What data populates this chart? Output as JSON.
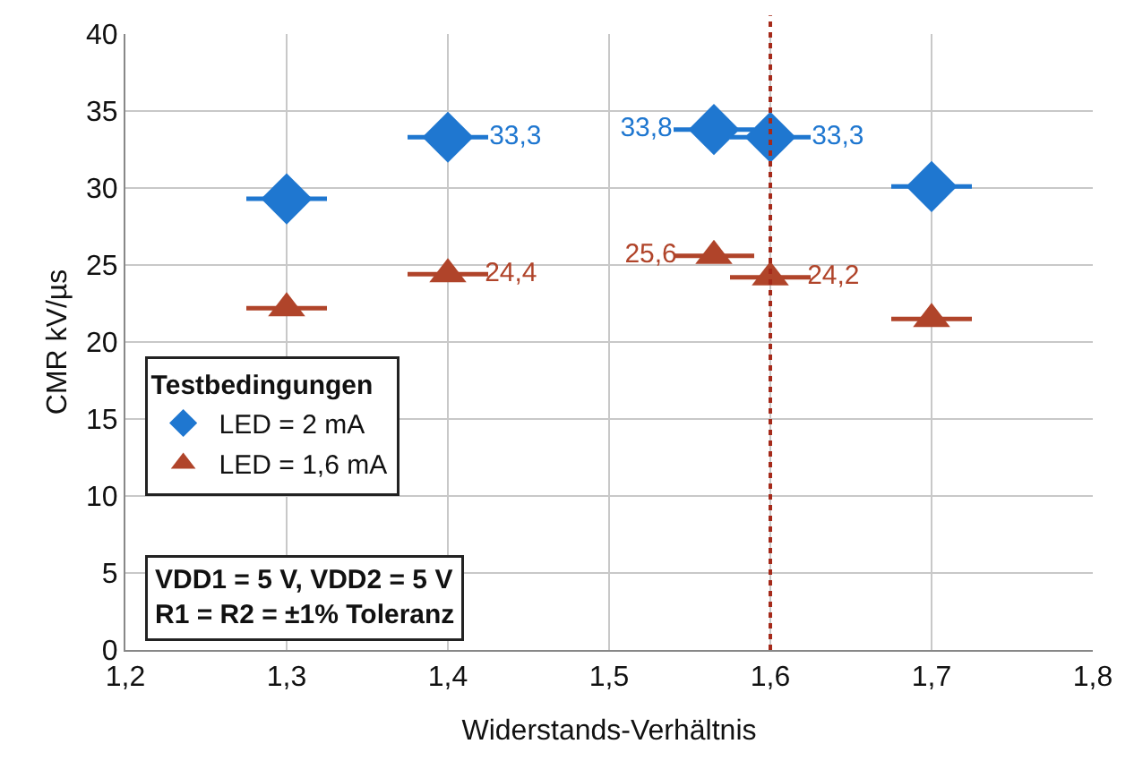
{
  "chart_data": {
    "type": "scatter",
    "xlabel": "Widerstands-Verhältnis",
    "ylabel": "CMR kV/µs",
    "xlim": [
      1.2,
      1.8
    ],
    "xticks": [
      {
        "value": 1.2,
        "label": "1,2"
      },
      {
        "value": 1.3,
        "label": "1,3"
      },
      {
        "value": 1.4,
        "label": "1,4"
      },
      {
        "value": 1.5,
        "label": "1,5"
      },
      {
        "value": 1.6,
        "label": "1,6"
      },
      {
        "value": 1.7,
        "label": "1,7"
      },
      {
        "value": 1.8,
        "label": "1,8"
      }
    ],
    "ylim": [
      0,
      40
    ],
    "yticks": [
      0,
      5,
      10,
      15,
      20,
      25,
      30,
      35,
      40
    ],
    "grid": true,
    "legend": "bottom left",
    "legend_title": "Testbedingungen",
    "series": [
      {
        "name": "LED = 2 mA",
        "color": "#1f77d0",
        "marker": "diamond",
        "x": [
          1.3,
          1.4,
          1.565,
          1.6,
          1.7
        ],
        "values": [
          29.3,
          33.3,
          33.8,
          33.3,
          30.1
        ],
        "xerrors": [
          0.025,
          0.025,
          0.025,
          0.025,
          0.025
        ],
        "value_labels": [
          null,
          "33,3",
          "33,8",
          "33,3",
          null
        ]
      },
      {
        "name": "LED = 1,6 mA",
        "color": "#b0442a",
        "marker": "triangle",
        "x": [
          1.3,
          1.4,
          1.565,
          1.6,
          1.7
        ],
        "values": [
          22.2,
          24.4,
          25.6,
          24.2,
          21.5
        ],
        "xerrors": [
          0.025,
          0.025,
          0.025,
          0.025,
          0.025
        ],
        "value_labels": [
          null,
          "24,4",
          "25,6",
          "24,2",
          null
        ]
      }
    ],
    "ref_lines": [
      {
        "axis": "x",
        "value": 1.6,
        "color": "#a52a1a",
        "line_style": "dotted"
      }
    ],
    "annotations": [
      "VDD1 = 5 V, VDD2 = 5 V",
      "R1 = R2 = ±1% Toleranz"
    ]
  }
}
